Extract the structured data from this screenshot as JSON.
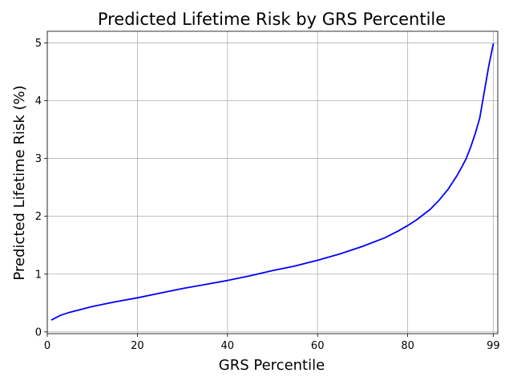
{
  "chart_data": {
    "type": "line",
    "title": "Predicted Lifetime Risk by GRS Percentile",
    "xlabel": "GRS Percentile",
    "ylabel": "Predicted Lifetime Risk (%)",
    "xlim": [
      0,
      100
    ],
    "ylim": [
      -0.03,
      5.2
    ],
    "xticks": [
      0,
      20,
      40,
      60,
      80,
      99
    ],
    "xtick_labels": [
      "0",
      "20",
      "40",
      "60",
      "80",
      "99"
    ],
    "yticks": [
      0,
      1,
      2,
      3,
      4,
      5
    ],
    "ytick_labels": [
      "0",
      "1",
      "2",
      "3",
      "4",
      "5"
    ],
    "grid": true,
    "legend": "none",
    "series": [
      {
        "color": "#0000ff",
        "x": [
          1,
          2,
          3,
          5,
          7,
          10,
          15,
          20,
          25,
          30,
          35,
          40,
          45,
          50,
          55,
          60,
          65,
          70,
          75,
          78,
          80,
          82,
          85,
          87,
          89,
          90,
          91,
          92,
          93,
          94,
          95,
          96,
          97,
          98,
          99
        ],
        "y": [
          0.21,
          0.25,
          0.29,
          0.34,
          0.38,
          0.44,
          0.52,
          0.59,
          0.67,
          0.75,
          0.82,
          0.89,
          0.97,
          1.06,
          1.14,
          1.24,
          1.35,
          1.48,
          1.63,
          1.75,
          1.84,
          1.94,
          2.12,
          2.28,
          2.47,
          2.59,
          2.71,
          2.85,
          3.0,
          3.2,
          3.43,
          3.7,
          4.15,
          4.6,
          4.98
        ]
      }
    ]
  }
}
